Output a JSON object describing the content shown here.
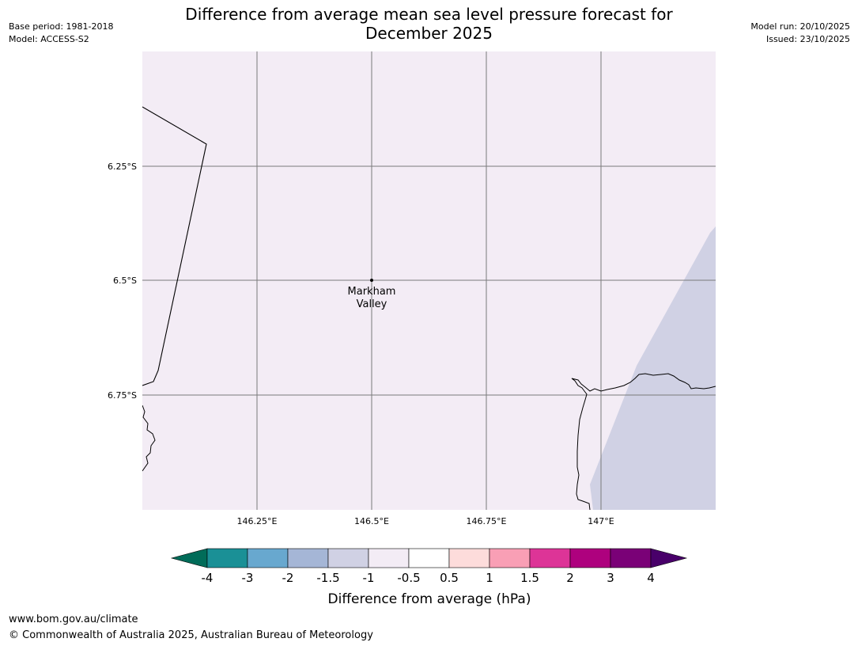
{
  "header": {
    "base_period": "Base period: 1981-2018",
    "model": "Model: ACCESS-S2",
    "model_run": "Model run: 20/10/2025",
    "issued": "Issued: 23/10/2025",
    "title_line1": "Difference from average mean sea level pressure forecast for",
    "title_line2": "December 2025"
  },
  "map": {
    "background_color": "#f3ecf5",
    "anomaly_region_color": "#d0d1e4",
    "gridline_color": "#7a7a7a",
    "lat_ticks": [
      "6.25°S",
      "6.5°S",
      "6.75°S"
    ],
    "lon_ticks": [
      "146.25°E",
      "146.5°E",
      "146.75°E",
      "147°E"
    ],
    "place": {
      "name_line1": "Markham",
      "name_line2": "Valley"
    }
  },
  "colorbar": {
    "ticks": [
      "-4",
      "-3",
      "-2",
      "-1.5",
      "-1",
      "-0.5",
      "0.5",
      "1",
      "1.5",
      "2",
      "3",
      "4"
    ],
    "colors": [
      "#1a9096",
      "#68a8cf",
      "#a5b6d6",
      "#d0d1e4",
      "#f3ecf5",
      "#ffffff",
      "#fddcdb",
      "#f99fb5",
      "#dd3497",
      "#ae017e",
      "#7a0177"
    ],
    "extend_low_color": "#016c59",
    "extend_high_color": "#49006a",
    "label": "Difference from average (hPa)"
  },
  "footer": {
    "url": "www.bom.gov.au/climate",
    "copyright": "© Commonwealth of Australia 2025, Australian Bureau of Meteorology"
  }
}
